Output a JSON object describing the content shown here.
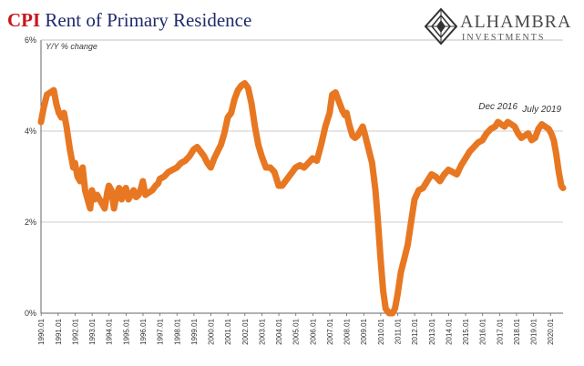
{
  "title_prefix": "CPI",
  "title_rest": "Rent of Primary Residence",
  "logo": {
    "name": "ALHAMBRA",
    "sub": "INVESTMENTS"
  },
  "colors": {
    "line": "#e87722",
    "title_red": "#c8161d",
    "title_blue": "#1f2a6b",
    "axis": "#555555"
  },
  "chart_data": {
    "type": "line",
    "ylabel": "Y/Y % change",
    "ylim": [
      0,
      6
    ],
    "yticks": [
      {
        "value": 0,
        "label": "0%"
      },
      {
        "value": 2,
        "label": "2%"
      },
      {
        "value": 4,
        "label": "4%"
      },
      {
        "value": 6,
        "label": "6%"
      }
    ],
    "xlim": [
      1990.0,
      2020.75
    ],
    "xticks": [
      "1990.01",
      "1991.01",
      "1992.01",
      "1993.01",
      "1994.01",
      "1995.01",
      "1996.01",
      "1997.01",
      "1998.01",
      "1999.01",
      "2000.01",
      "2001.01",
      "2002.01",
      "2003.01",
      "2004.01",
      "2005.01",
      "2006.01",
      "2007.01",
      "2008.01",
      "2009.01",
      "2010.01",
      "2011.01",
      "2012.01",
      "2013.01",
      "2014.01",
      "2015.01",
      "2016.01",
      "2017.01",
      "2018.01",
      "2019.01",
      "2020.01"
    ],
    "annotations": [
      {
        "text": "Dec 2016",
        "x": 2016.92,
        "y": 4.2
      },
      {
        "text": "July 2019",
        "x": 2019.5,
        "y": 4.15
      }
    ],
    "series": [
      {
        "x": [
          1990.0,
          1990.15,
          1990.35,
          1990.55,
          1990.75,
          1990.9,
          1991.05,
          1991.2,
          1991.35,
          1991.5,
          1991.7,
          1991.9,
          1992.0,
          1992.15,
          1992.3,
          1992.45,
          1992.6,
          1992.75,
          1992.9,
          1993.0,
          1993.15,
          1993.3,
          1993.45,
          1993.6,
          1993.75,
          1993.9,
          1994.0,
          1994.15,
          1994.3,
          1994.45,
          1994.6,
          1994.75,
          1994.9,
          1995.0,
          1995.15,
          1995.3,
          1995.45,
          1995.6,
          1995.75,
          1995.9,
          1996.0,
          1996.15,
          1996.35,
          1996.55,
          1996.75,
          1996.9,
          1997.0,
          1997.25,
          1997.5,
          1997.75,
          1998.0,
          1998.25,
          1998.5,
          1998.75,
          1999.0,
          1999.2,
          1999.4,
          1999.6,
          1999.8,
          2000.0,
          2000.2,
          2000.4,
          2000.6,
          2000.8,
          2001.0,
          2001.2,
          2001.4,
          2001.6,
          2001.8,
          2002.0,
          2002.2,
          2002.4,
          2002.6,
          2002.8,
          2003.0,
          2003.25,
          2003.5,
          2003.75,
          2004.0,
          2004.2,
          2004.4,
          2004.6,
          2004.8,
          2005.0,
          2005.25,
          2005.5,
          2005.75,
          2006.0,
          2006.25,
          2006.5,
          2006.75,
          2007.0,
          2007.15,
          2007.35,
          2007.55,
          2007.75,
          2007.9,
          2008.0,
          2008.15,
          2008.35,
          2008.5,
          2008.65,
          2008.8,
          2008.95,
          2009.1,
          2009.3,
          2009.5,
          2009.7,
          2009.85,
          2010.0,
          2010.15,
          2010.3,
          2010.5,
          2010.7,
          2010.85,
          2011.0,
          2011.2,
          2011.4,
          2011.6,
          2011.8,
          2012.0,
          2012.25,
          2012.5,
          2012.75,
          2013.0,
          2013.25,
          2013.5,
          2013.75,
          2014.0,
          2014.25,
          2014.5,
          2014.75,
          2015.0,
          2015.25,
          2015.5,
          2015.75,
          2016.0,
          2016.25,
          2016.5,
          2016.75,
          2016.92,
          2017.1,
          2017.3,
          2017.5,
          2017.7,
          2017.9,
          2018.1,
          2018.3,
          2018.5,
          2018.7,
          2018.9,
          2019.1,
          2019.3,
          2019.5,
          2019.7,
          2019.9,
          2020.05,
          2020.2,
          2020.35,
          2020.5,
          2020.65,
          2020.75
        ],
        "values": [
          4.2,
          4.5,
          4.8,
          4.85,
          4.9,
          4.6,
          4.4,
          4.3,
          4.4,
          4.1,
          3.6,
          3.2,
          3.3,
          3.0,
          2.9,
          3.2,
          2.7,
          2.5,
          2.3,
          2.7,
          2.5,
          2.6,
          2.5,
          2.4,
          2.3,
          2.65,
          2.8,
          2.7,
          2.3,
          2.6,
          2.75,
          2.5,
          2.7,
          2.75,
          2.5,
          2.6,
          2.7,
          2.55,
          2.6,
          2.75,
          2.9,
          2.6,
          2.65,
          2.7,
          2.8,
          2.85,
          2.95,
          3.0,
          3.1,
          3.15,
          3.2,
          3.3,
          3.35,
          3.45,
          3.6,
          3.65,
          3.55,
          3.45,
          3.3,
          3.2,
          3.4,
          3.55,
          3.7,
          3.95,
          4.3,
          4.4,
          4.7,
          4.9,
          5.0,
          5.05,
          4.95,
          4.6,
          4.1,
          3.7,
          3.45,
          3.2,
          3.2,
          3.1,
          2.8,
          2.8,
          2.9,
          3.0,
          3.1,
          3.2,
          3.25,
          3.2,
          3.3,
          3.4,
          3.35,
          3.7,
          4.1,
          4.4,
          4.8,
          4.85,
          4.65,
          4.45,
          4.35,
          4.4,
          4.15,
          3.9,
          3.85,
          3.9,
          4.0,
          4.1,
          3.9,
          3.6,
          3.3,
          2.7,
          2.0,
          1.2,
          0.5,
          0.1,
          0.0,
          0.0,
          0.1,
          0.4,
          0.9,
          1.2,
          1.5,
          2.0,
          2.5,
          2.7,
          2.75,
          2.9,
          3.05,
          3.0,
          2.9,
          3.05,
          3.15,
          3.1,
          3.05,
          3.25,
          3.4,
          3.55,
          3.65,
          3.75,
          3.8,
          3.95,
          4.05,
          4.1,
          4.2,
          4.15,
          4.1,
          4.2,
          4.15,
          4.1,
          3.95,
          3.85,
          3.9,
          3.95,
          3.8,
          3.85,
          4.05,
          4.15,
          4.1,
          4.05,
          3.95,
          3.8,
          3.5,
          3.1,
          2.8,
          2.75
        ]
      }
    ]
  }
}
